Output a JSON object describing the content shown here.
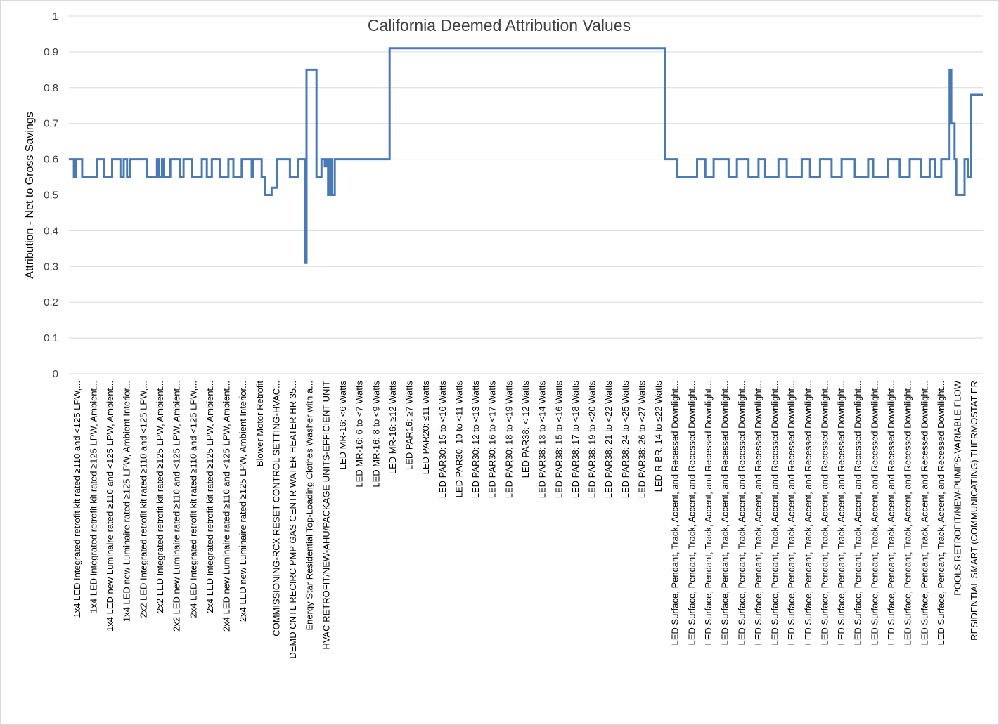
{
  "chart_data": {
    "type": "line",
    "title": "California Deemed Attribution Values",
    "ylabel": "Attribution - Net to Gross Savings",
    "xlabel": "",
    "ylim": [
      0,
      1
    ],
    "yticks": [
      "0",
      "0.1",
      "0.2",
      "0.3",
      "0.4",
      "0.5",
      "0.6",
      "0.7",
      "0.8",
      "0.9",
      "1"
    ],
    "grid": "horizontal",
    "legend": "none",
    "line_color": "#4A7AB5",
    "categories": [
      "1x4 LED Integrated retrofit kit rated ≥110 and <125 LPW,...",
      "1x4 LED Integrated retrofit kit rated ≥125 LPW, Ambient...",
      "1x4 LED new Luminaire rated ≥110 and <125 LPW, Ambient...",
      "1x4 LED new Luminaire rated ≥125 LPW, Ambient Interior...",
      "2x2 LED Integrated retrofit kit rated ≥110 and <125 LPW,...",
      "2x2 LED Integrated retrofit kit rated ≥125 LPW, Ambient...",
      "2x2 LED new Luminaire rated ≥110 and <125 LPW, Ambient...",
      "2x4 LED Integrated retrofit kit rated ≥110 and <125 LPW,...",
      "2x4 LED Integrated retrofit kit rated ≥125 LPW, Ambient...",
      "2x4 LED new Luminaire rated ≥110 and <125 LPW, Ambient...",
      "2x4 LED new Luminaire rated ≥125 LPW, Ambient Interior...",
      "Blower Motor Retrofit",
      "COMMISSIONING-RCX RESET CONTROL SETTING-HVAC...",
      "DEMD CNTL RECIRC PMP GAS CENTR WATER HEATER HR 35...",
      "Energy Star Residential Top-Loading Clothes Washer with a...",
      "HVAC RETROFIT/NEW-AHU/PACKAGE UNITS-EFFICIENT UNIT",
      "LED MR-16: <6 Watts",
      "LED MR-16:  6 to <7 Watts",
      "LED MR-16:  8 to <9 Watts",
      "LED MR-16: ≥12 Watts",
      "LED PAR16: ≥7 Watts",
      "LED PAR20: ≤11 Watts",
      "LED PAR30:  15  to <16 Watts",
      "LED PAR30: 10 to <11 Watts",
      "LED PAR30: 12 to <13 Watts",
      "LED PAR30: 16 to <17 Watts",
      "LED PAR30: 18 to <19 Watts",
      "LED PAR38: < 12  Watts",
      "LED PAR38: 13 to <14  Watts",
      "LED PAR38: 15 to <16  Watts",
      "LED PAR38: 17 to <18  Watts",
      "LED PAR38: 19 to <20  Watts",
      "LED PAR38: 21 to <22 Watts",
      "LED PAR38: 24 to <25 Watts",
      "LED PAR38: 26 to <27 Watts",
      "LED R-BR: 14 to ≤22 Watts",
      "LED Surface, Pendant, Track, Accent, and Recessed Downlight...",
      "LED Surface, Pendant, Track, Accent, and Recessed Downlight...",
      "LED Surface, Pendant, Track, Accent, and Recessed Downlight...",
      "LED Surface, Pendant, Track, Accent, and Recessed Downlight...",
      "LED Surface, Pendant, Track, Accent, and Recessed Downlight...",
      "LED Surface, Pendant, Track, Accent, and Recessed Downlight...",
      "LED Surface, Pendant, Track, Accent, and Recessed Downlight...",
      "LED Surface, Pendant, Track, Accent, and Recessed Downlight...",
      "LED Surface, Pendant, Track, Accent, and Recessed Downlight...",
      "LED Surface, Pendant, Track, Accent, and Recessed Downlight...",
      "LED Surface, Pendant, Track, Accent, and Recessed Downlight...",
      "LED Surface, Pendant, Track, Accent, and Recessed Downlight...",
      "LED Surface, Pendant, Track, Accent, and Recessed Downlight...",
      "LED Surface, Pendant, Track, Accent, and Recessed Downlight...",
      "LED Surface, Pendant, Track, Accent, and Recessed Downlight...",
      "LED Surface, Pendant, Track, Accent, and Recessed Downlight...",
      "LED Surface, Pendant, Track, Accent, and Recessed Downlight...",
      "POOLS RETROFIT/NEW-PUMPS-VARIABLE FLOW",
      "RESIDENTIAL SMART (COMMUNICATING) THERMOSTAT ER"
    ],
    "series": [
      {
        "x": [
          0,
          0.3,
          0.4,
          0.8,
          1.7,
          2.1,
          2.6,
          3.1,
          3.3,
          3.5,
          3.7,
          4.7,
          5.3,
          5.4,
          5.6,
          5.7,
          6.1,
          6.7,
          6.9,
          7.4,
          8.0,
          8.3,
          8.6,
          9.1,
          9.6,
          9.9,
          10.4,
          11.0,
          11.1,
          11.6,
          11.8,
          12.2,
          12.5,
          13.3,
          13.8,
          14.2,
          14.3,
          14.5,
          14.9,
          15.2,
          15.4,
          15.5,
          15.6,
          15.7,
          15.8,
          16.0,
          19.0,
          19.3,
          35.5,
          35.9,
          36.6,
          37.8,
          38.3,
          38.8,
          39.7,
          40.2,
          40.9,
          41.5,
          41.9,
          42.7,
          43.2,
          44.1,
          44.6,
          45.2,
          45.9,
          46.5,
          47.3,
          48.1,
          48.4,
          49.3,
          50.0,
          50.6,
          51.3,
          51.8,
          52.1,
          52.5,
          53.0,
          53.1,
          53.3,
          53.4,
          53.9,
          54.1,
          54.3
        ],
        "values": [
          0.6,
          0.55,
          0.6,
          0.55,
          0.6,
          0.55,
          0.6,
          0.55,
          0.6,
          0.55,
          0.6,
          0.55,
          0.6,
          0.55,
          0.6,
          0.55,
          0.6,
          0.55,
          0.6,
          0.55,
          0.6,
          0.55,
          0.6,
          0.55,
          0.6,
          0.55,
          0.6,
          0.55,
          0.6,
          0.55,
          0.5,
          0.52,
          0.6,
          0.55,
          0.6,
          0.31,
          0.85,
          0.85,
          0.55,
          0.6,
          0.58,
          0.6,
          0.5,
          0.6,
          0.5,
          0.6,
          0.6,
          0.91,
          0.91,
          0.6,
          0.55,
          0.6,
          0.55,
          0.6,
          0.55,
          0.6,
          0.55,
          0.6,
          0.55,
          0.6,
          0.55,
          0.6,
          0.55,
          0.6,
          0.55,
          0.6,
          0.55,
          0.6,
          0.55,
          0.6,
          0.55,
          0.6,
          0.55,
          0.6,
          0.55,
          0.6,
          0.85,
          0.7,
          0.6,
          0.5,
          0.6,
          0.55,
          0.78
        ]
      }
    ]
  }
}
